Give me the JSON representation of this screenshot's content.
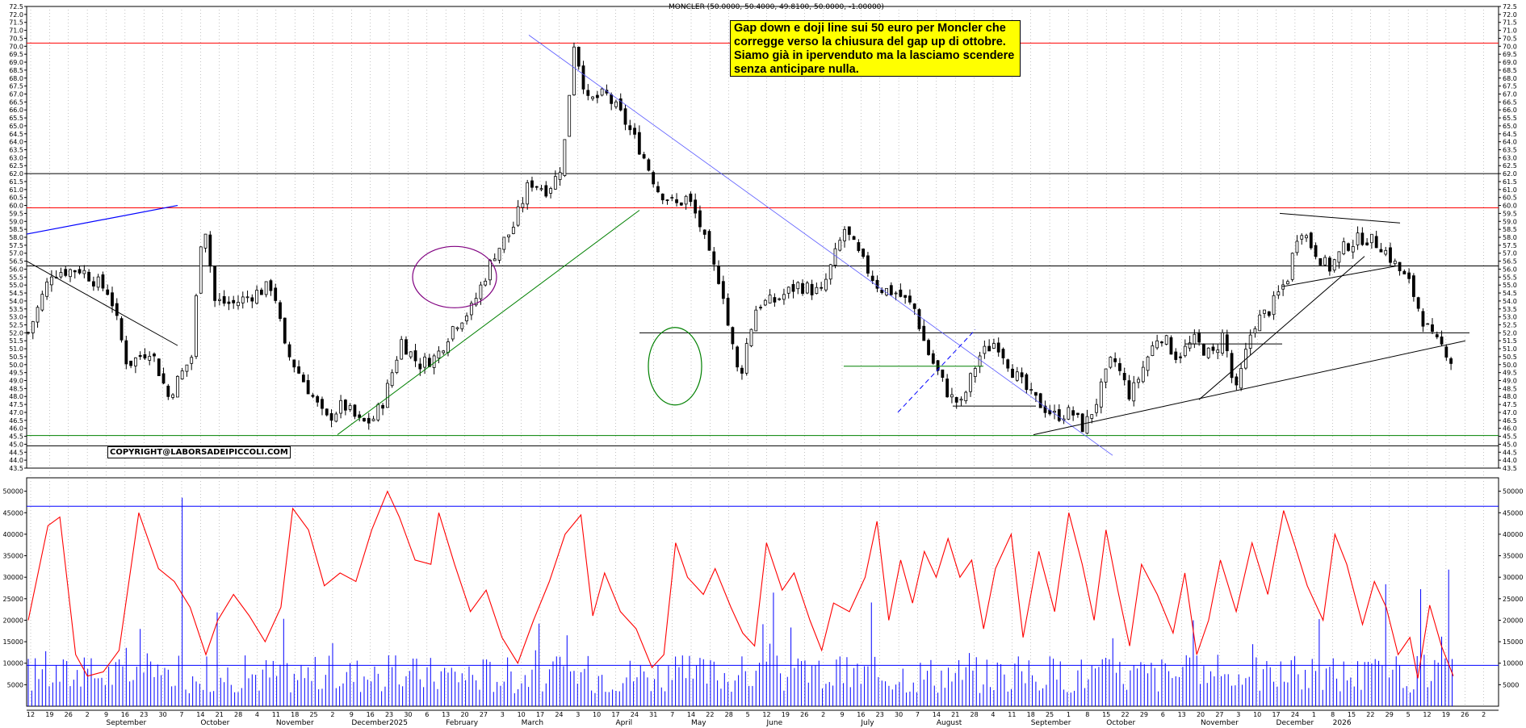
{
  "header": "MONCLER (50.0000, 50.4000, 49.8100, 50.0000, -1.00000)",
  "annotation": {
    "lines": [
      "Gap down e doji line sui 50 euro  per Moncler che",
      "corregge verso la chiusura del gap up di ottobre.",
      "Siamo già in ipervenduto ma la lasciamo scendere",
      "senza anticipare nulla."
    ],
    "background": "#ffff00"
  },
  "copyright": "COPYRIGHT@LABORSADEIPICCOLI.COM",
  "colors": {
    "resistance": "#ff0000",
    "neutral_level": "#000000",
    "support": "#008000",
    "trend_blue": "#0000ff",
    "volume": "#0000ff",
    "volume_ma": "#ff0000",
    "ellipse_purple": "#800080",
    "ellipse_green": "#008000"
  },
  "chart_data": [
    {
      "type": "candlestick",
      "ylim": [
        43.5,
        72.5
      ],
      "ytick_step": 0.5,
      "x_day_labels": [
        "12",
        "19",
        "26",
        "2",
        "9",
        "16",
        "23",
        "30",
        "7",
        "14",
        "21",
        "28",
        "4",
        "11",
        "18",
        "25",
        "2",
        "9",
        "16",
        "23",
        "30",
        "6",
        "13",
        "20",
        "27",
        "3",
        "10",
        "17",
        "24",
        "3",
        "10",
        "17",
        "24",
        "31",
        "7",
        "14",
        "22",
        "28",
        "5",
        "12",
        "19",
        "26",
        "2",
        "9",
        "16",
        "23",
        "30",
        "7",
        "14",
        "21",
        "28",
        "4",
        "11",
        "18",
        "25",
        "1",
        "8",
        "15",
        "22",
        "29",
        "6",
        "13",
        "20",
        "27",
        "3",
        "10",
        "17",
        "24",
        "1",
        "8",
        "15",
        "22",
        "29",
        "5",
        "12",
        "19",
        "26",
        "2"
      ],
      "x_month_labels": [
        "September",
        "October",
        "November",
        "December",
        "2025",
        "February",
        "March",
        "April",
        "May",
        "June",
        "July",
        "August",
        "September",
        "October",
        "November",
        "December",
        "2026"
      ],
      "horizontal_levels": [
        {
          "value": 70.2,
          "color": "red"
        },
        {
          "value": 62.0,
          "color": "black"
        },
        {
          "value": 59.85,
          "color": "red"
        },
        {
          "value": 56.2,
          "color": "black"
        },
        {
          "value": 45.55,
          "color": "green"
        },
        {
          "value": 44.9,
          "color": "black"
        },
        {
          "value": 52.0,
          "color": "black",
          "partial": true
        }
      ],
      "last_bar": {
        "open": 50.0,
        "high": 50.4,
        "low": 49.81,
        "close": 50.0,
        "change": -1.0
      },
      "price_path": [
        [
          0,
          52.0
        ],
        [
          20,
          55.8
        ],
        [
          45,
          56.0
        ],
        [
          70,
          54.5
        ],
        [
          85,
          50.0
        ],
        [
          105,
          51.0
        ],
        [
          120,
          48.0
        ],
        [
          140,
          50.5
        ],
        [
          150,
          59.6
        ],
        [
          160,
          54.0
        ],
        [
          175,
          53.8
        ],
        [
          195,
          54.5
        ],
        [
          210,
          55.0
        ],
        [
          220,
          51.0
        ],
        [
          240,
          48.5
        ],
        [
          255,
          46.5
        ],
        [
          270,
          47.5
        ],
        [
          285,
          46.3
        ],
        [
          295,
          46.5
        ],
        [
          305,
          47.8
        ],
        [
          320,
          51.5
        ],
        [
          335,
          50.0
        ],
        [
          350,
          50.5
        ],
        [
          365,
          52.5
        ],
        [
          380,
          53.5
        ],
        [
          400,
          57.0
        ],
        [
          415,
          58.5
        ],
        [
          430,
          61.5
        ],
        [
          445,
          61.0
        ],
        [
          455,
          62.0
        ],
        [
          460,
          64.0
        ],
        [
          468,
          70.2
        ],
        [
          480,
          66.5
        ],
        [
          495,
          67.0
        ],
        [
          510,
          65.5
        ],
        [
          525,
          63.5
        ],
        [
          540,
          61.0
        ],
        [
          555,
          60.0
        ],
        [
          565,
          60.5
        ],
        [
          575,
          59.0
        ],
        [
          585,
          56.5
        ],
        [
          595,
          55.0
        ],
        [
          600,
          52.5
        ],
        [
          610,
          49.0
        ],
        [
          615,
          51.0
        ],
        [
          625,
          53.8
        ],
        [
          640,
          54.0
        ],
        [
          660,
          55.0
        ],
        [
          680,
          54.5
        ],
        [
          700,
          58.5
        ],
        [
          715,
          56.5
        ],
        [
          730,
          54.8
        ],
        [
          745,
          54.5
        ],
        [
          760,
          53.5
        ],
        [
          770,
          51.0
        ],
        [
          790,
          48.0
        ],
        [
          800,
          47.5
        ],
        [
          815,
          50.5
        ],
        [
          830,
          51.5
        ],
        [
          845,
          49.5
        ],
        [
          860,
          48.0
        ],
        [
          880,
          46.8
        ],
        [
          895,
          47.0
        ],
        [
          905,
          46.0
        ],
        [
          915,
          47.5
        ],
        [
          930,
          50.5
        ],
        [
          945,
          48.0
        ],
        [
          960,
          50.5
        ],
        [
          970,
          52.0
        ],
        [
          985,
          50.5
        ],
        [
          1000,
          51.5
        ],
        [
          1015,
          50.5
        ],
        [
          1025,
          52.0
        ],
        [
          1035,
          48.0
        ],
        [
          1050,
          52.5
        ],
        [
          1065,
          53.5
        ],
        [
          1080,
          55.5
        ],
        [
          1090,
          58.8
        ],
        [
          1100,
          57.5
        ],
        [
          1115,
          56.0
        ],
        [
          1130,
          57.5
        ],
        [
          1145,
          58.0
        ],
        [
          1160,
          57.5
        ],
        [
          1175,
          56.0
        ],
        [
          1185,
          55.0
        ],
        [
          1195,
          53.0
        ],
        [
          1205,
          51.5
        ],
        [
          1215,
          51.0
        ],
        [
          1222,
          50.0
        ]
      ],
      "volume_axis_ticks": [
        5000,
        10000,
        15000,
        20000,
        25000,
        30000,
        35000,
        40000,
        45000,
        50000
      ],
      "volume_reference_levels": [
        46500,
        9500
      ]
    }
  ]
}
